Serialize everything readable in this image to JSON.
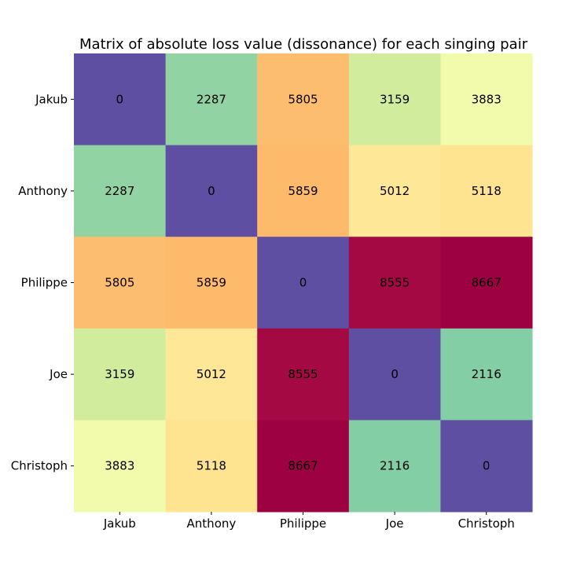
{
  "chart_data": {
    "type": "heatmap",
    "title": "Matrix of absolute loss value (dissonance) for each singing pair",
    "xlabel": "",
    "ylabel": "",
    "x_categories": [
      "Jakub",
      "Anthony",
      "Philippe",
      "Joe",
      "Christoph"
    ],
    "y_categories": [
      "Jakub",
      "Anthony",
      "Philippe",
      "Joe",
      "Christoph"
    ],
    "values": [
      [
        0,
        2287,
        5805,
        3159,
        3883
      ],
      [
        2287,
        0,
        5859,
        5012,
        5118
      ],
      [
        5805,
        5859,
        0,
        8555,
        8667
      ],
      [
        3159,
        5012,
        8555,
        0,
        2116
      ],
      [
        3883,
        5118,
        8667,
        2116,
        0
      ]
    ],
    "value_range": [
      0,
      8667
    ],
    "colormap": "Spectral_r",
    "colormap_stops": [
      "#5e4fa2",
      "#3288bd",
      "#66c2a5",
      "#abdda4",
      "#e6f598",
      "#ffffbf",
      "#fee08b",
      "#fdae61",
      "#f46d43",
      "#d53e4f",
      "#9e0142"
    ],
    "annotation_color": "#000000",
    "colorbar": false,
    "grid": false
  }
}
